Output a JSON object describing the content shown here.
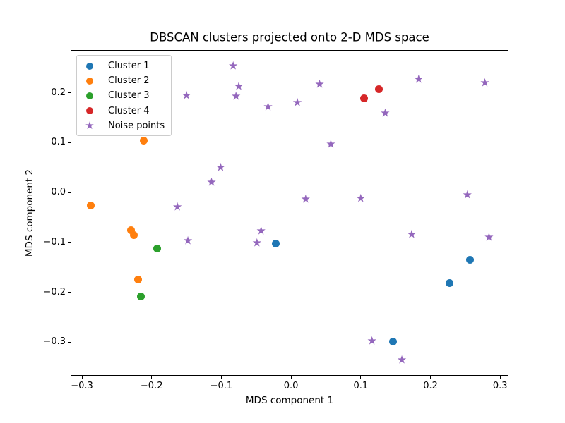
{
  "figure": {
    "background_color": "#ffffff",
    "frame_color": "#000000",
    "legend_border_color": "#cccccc"
  },
  "chart_data": {
    "type": "scatter",
    "title": "DBSCAN clusters projected onto 2-D MDS space",
    "xlabel": "MDS component 1",
    "ylabel": "MDS component 2",
    "xlim": [
      -0.3152,
      0.3109
    ],
    "ylim": [
      -0.3662,
      0.2845
    ],
    "grid": false,
    "legend_position": "upper left",
    "x_ticks": [
      -0.3,
      -0.2,
      -0.1,
      0.0,
      0.1,
      0.2,
      0.3
    ],
    "x_tick_labels": [
      "−0.3",
      "−0.2",
      "−0.1",
      "0.0",
      "0.1",
      "0.2",
      "0.3"
    ],
    "y_ticks": [
      -0.3,
      -0.2,
      -0.1,
      0.0,
      0.1,
      0.2
    ],
    "y_tick_labels": [
      "−0.3",
      "−0.2",
      "−0.1",
      "0.0",
      "0.1",
      "0.2"
    ],
    "series": [
      {
        "name": "Cluster 1",
        "marker": "circle",
        "color": "#1f77b4",
        "points": [
          [
            -0.022,
            -0.103
          ],
          [
            0.227,
            -0.182
          ],
          [
            0.257,
            -0.135
          ],
          [
            0.146,
            -0.299
          ]
        ]
      },
      {
        "name": "Cluster 2",
        "marker": "circle",
        "color": "#ff7f0e",
        "points": [
          [
            -0.211,
            0.104
          ],
          [
            -0.287,
            -0.026
          ],
          [
            -0.23,
            -0.075
          ],
          [
            -0.226,
            -0.086
          ],
          [
            -0.219,
            -0.174
          ]
        ]
      },
      {
        "name": "Cluster 3",
        "marker": "circle",
        "color": "#2ca02c",
        "points": [
          [
            -0.192,
            -0.112
          ],
          [
            -0.215,
            -0.208
          ]
        ]
      },
      {
        "name": "Cluster 4",
        "marker": "circle",
        "color": "#d62728",
        "points": [
          [
            0.105,
            0.189
          ],
          [
            0.126,
            0.208
          ]
        ]
      },
      {
        "name": "Noise points",
        "marker": "star",
        "color": "#9467bd",
        "points": [
          [
            -0.083,
            0.253
          ],
          [
            -0.075,
            0.213
          ],
          [
            -0.079,
            0.193
          ],
          [
            -0.15,
            0.194
          ],
          [
            -0.033,
            0.172
          ],
          [
            0.009,
            0.18
          ],
          [
            0.041,
            0.217
          ],
          [
            0.135,
            0.159
          ],
          [
            0.183,
            0.226
          ],
          [
            0.278,
            0.219
          ],
          [
            0.057,
            0.096
          ],
          [
            -0.101,
            0.049
          ],
          [
            -0.114,
            0.02
          ],
          [
            0.021,
            -0.014
          ],
          [
            0.1,
            -0.012
          ],
          [
            0.253,
            -0.005
          ],
          [
            -0.163,
            -0.03
          ],
          [
            -0.148,
            -0.097
          ],
          [
            -0.043,
            -0.078
          ],
          [
            -0.049,
            -0.102
          ],
          [
            0.173,
            -0.084
          ],
          [
            0.284,
            -0.091
          ],
          [
            0.116,
            -0.298
          ],
          [
            0.159,
            -0.337
          ]
        ]
      }
    ]
  }
}
